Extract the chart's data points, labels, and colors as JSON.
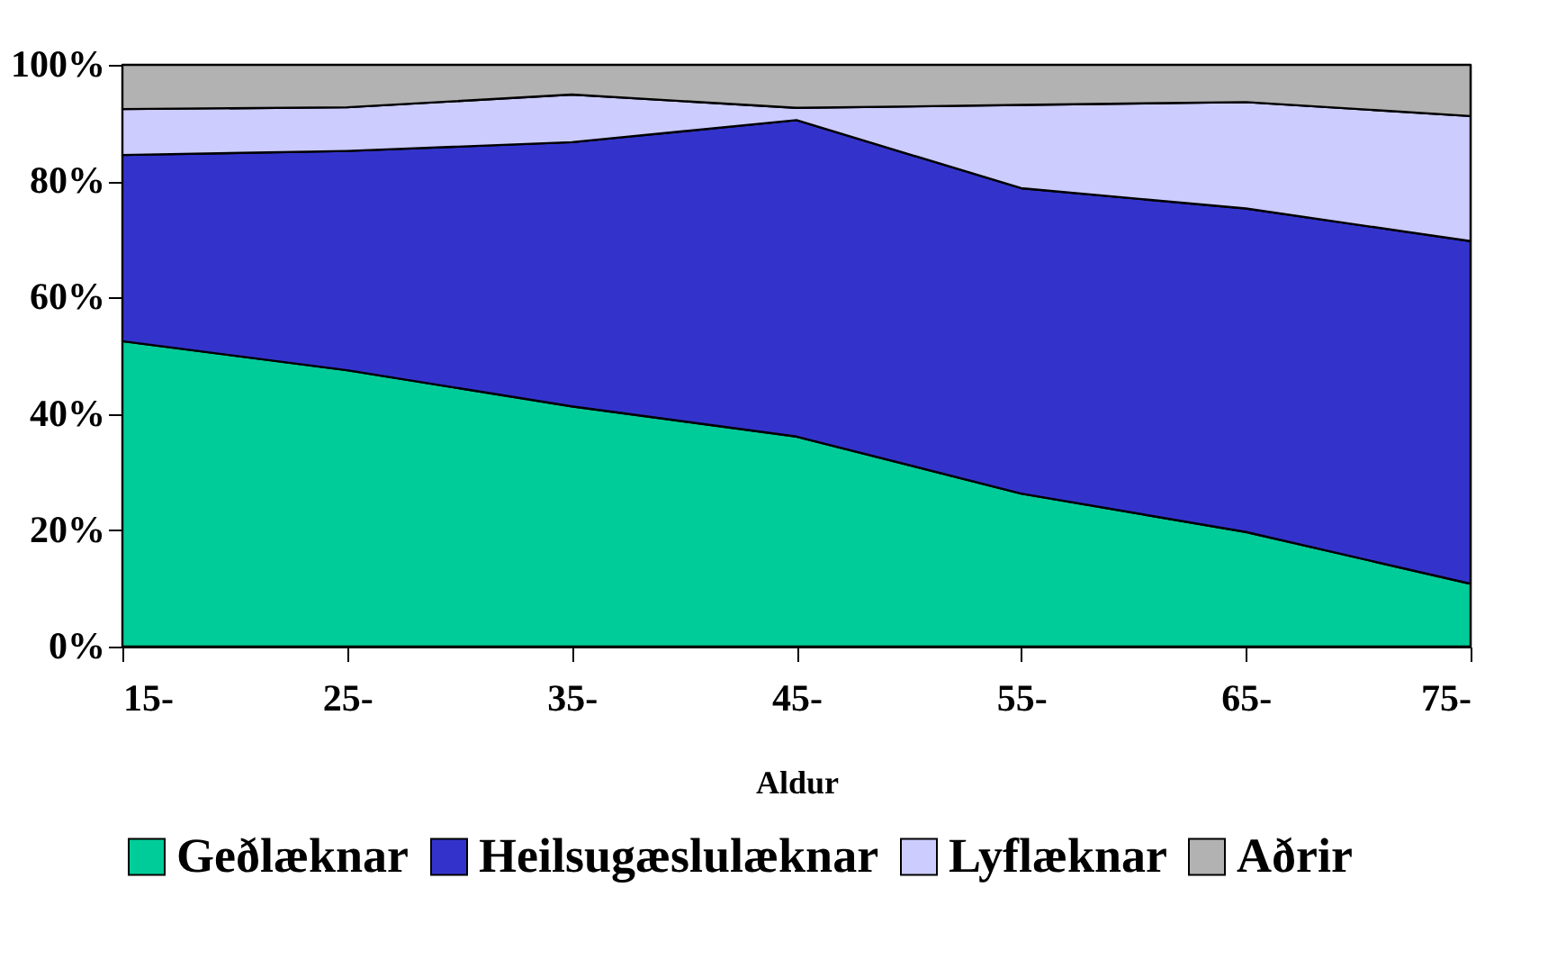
{
  "chart_data": {
    "type": "area",
    "stacked": true,
    "xlabel": "Aldur",
    "categories": [
      "15-",
      "25-",
      "35-",
      "45-",
      "55-",
      "65-",
      "75-"
    ],
    "series": [
      {
        "name": "Geðlæknar",
        "color": "#00cc99",
        "values": [
          52.5,
          47.5,
          41.3,
          36.1,
          26.3,
          19.7,
          10.8
        ]
      },
      {
        "name": "Heilsugæslulæknar",
        "color": "#3333cc",
        "values": [
          32.0,
          37.7,
          45.4,
          54.4,
          52.5,
          55.6,
          58.9
        ]
      },
      {
        "name": "Lyflæknar",
        "color": "#ccccff",
        "values": [
          7.9,
          7.5,
          8.2,
          2.1,
          14.3,
          18.3,
          21.5
        ]
      },
      {
        "name": "Aðrir",
        "color": "#b2b2b2",
        "values": [
          7.6,
          7.3,
          5.1,
          7.4,
          6.9,
          6.4,
          8.8
        ]
      }
    ],
    "ylim": [
      0,
      100
    ],
    "yticks": [
      {
        "value": 0,
        "label": "0%"
      },
      {
        "value": 20,
        "label": "20%"
      },
      {
        "value": 40,
        "label": "40%"
      },
      {
        "value": 60,
        "label": "60%"
      },
      {
        "value": 80,
        "label": "80%"
      },
      {
        "value": 100,
        "label": "100%"
      }
    ],
    "legend": "bottom"
  }
}
